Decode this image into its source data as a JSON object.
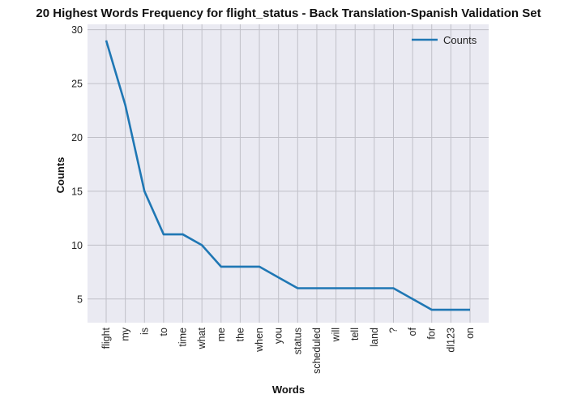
{
  "chart_data": {
    "type": "line",
    "title": "20 Highest Words Frequency for flight_status - Back Translation-Spanish Validation Set",
    "xlabel": "Words",
    "ylabel": "Counts",
    "categories": [
      "flight",
      "my",
      "is",
      "to",
      "time",
      "what",
      "me",
      "the",
      "when",
      "you",
      "status",
      "scheduled",
      "will",
      "tell",
      "land",
      "?",
      "of",
      "for",
      "dl123",
      "on"
    ],
    "series": [
      {
        "name": "Counts",
        "values": [
          29,
          23,
          15,
          11,
          11,
          10,
          8,
          8,
          8,
          7,
          6,
          6,
          6,
          6,
          6,
          6,
          5,
          4,
          4,
          4
        ],
        "color": "#1f77b4"
      }
    ],
    "ylim": [
      2.8,
      30.5
    ],
    "yticks": [
      5,
      10,
      15,
      20,
      25,
      30
    ],
    "grid": true,
    "legend": "top-right",
    "background": "#eaeaf2",
    "grid_color": "#c0c0c8"
  }
}
